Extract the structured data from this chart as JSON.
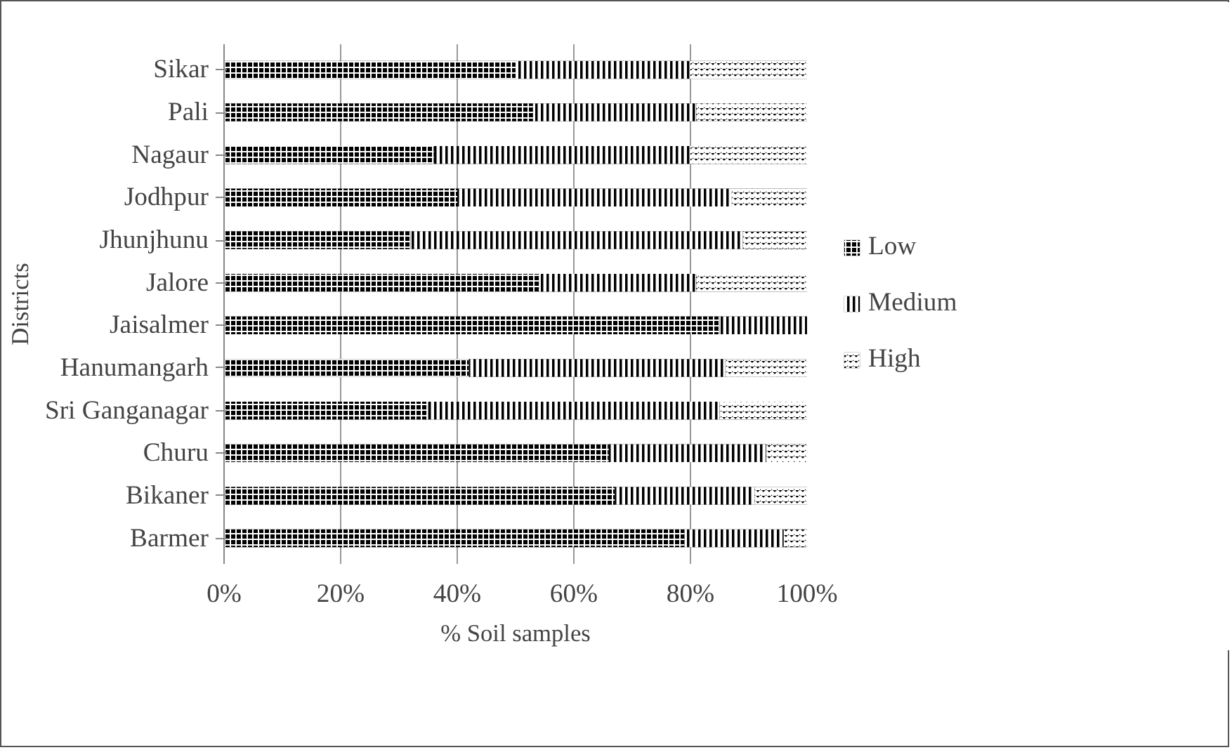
{
  "chart_data": {
    "type": "bar",
    "orientation": "horizontal",
    "stacked": true,
    "xlabel": "% Soil samples",
    "ylabel": "Districts",
    "categories": [
      "Sikar",
      "Pali",
      "Nagaur",
      "Jodhpur",
      "Jhunjhunu",
      "Jalore",
      "Jaisalmer",
      "Hanumangarh",
      "Sri Ganganagar",
      "Churu",
      "Bikaner",
      "Barmer"
    ],
    "series": [
      {
        "name": "Low",
        "color": "#000000",
        "values": [
          50,
          53,
          36,
          40,
          32,
          54,
          85,
          42,
          35,
          66,
          67,
          79
        ]
      },
      {
        "name": "Medium",
        "color": "#000000",
        "values": [
          30,
          28,
          44,
          47,
          57,
          27,
          15,
          44,
          50,
          27,
          24,
          17
        ]
      },
      {
        "name": "High",
        "color": "#000000",
        "values": [
          20,
          19,
          20,
          13,
          11,
          19,
          0,
          14,
          15,
          7,
          9,
          4
        ]
      }
    ],
    "xlim": [
      0,
      100
    ],
    "xticks": [
      {
        "value": 0,
        "label": "0%"
      },
      {
        "value": 20,
        "label": "20%"
      },
      {
        "value": 40,
        "label": "40%"
      },
      {
        "value": 60,
        "label": "60%"
      },
      {
        "value": 80,
        "label": "80%"
      },
      {
        "value": 100,
        "label": "100%"
      }
    ],
    "grid": "x",
    "legend": "right"
  }
}
